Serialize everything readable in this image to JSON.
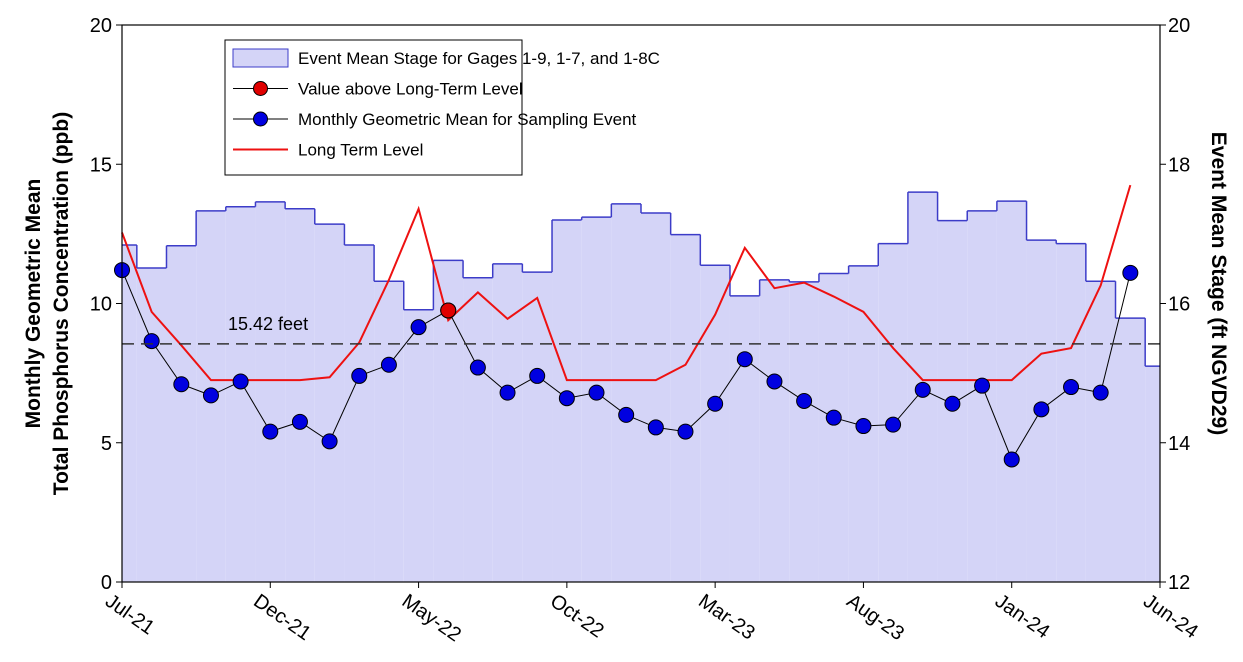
{
  "chart_data": {
    "type": "line",
    "y_label_lines": [
      "Monthly Geometric Mean",
      "Total Phosphorus Concentration (ppb)"
    ],
    "y2_label": "Event Mean Stage (ft NGVD29)",
    "categories": [
      "Jul-21",
      null,
      null,
      null,
      null,
      "Dec-21",
      null,
      null,
      null,
      null,
      "May-22",
      null,
      null,
      null,
      null,
      "Oct-22",
      null,
      null,
      null,
      null,
      "Mar-23",
      null,
      null,
      null,
      null,
      "Aug-23",
      null,
      null,
      null,
      null,
      "Jan-24",
      null,
      null,
      null,
      null,
      "Jun-24"
    ],
    "ylim": [
      0,
      20
    ],
    "yticks": [
      0,
      5,
      10,
      15,
      20
    ],
    "y2lim": [
      12,
      20
    ],
    "y2ticks": [
      12,
      14,
      16,
      18,
      20
    ],
    "grid": false,
    "legend": "upper left",
    "series": [
      {
        "name": "Event Mean Stage for Gages 1-9, 1-7, and 1-8C",
        "axis": "y2",
        "style": "step-area",
        "color": "#d4d4f7",
        "edge_color": "#3c3cc8",
        "values": [
          16.84,
          16.51,
          16.83,
          17.33,
          17.39,
          17.46,
          17.36,
          17.14,
          16.84,
          16.32,
          15.91,
          16.62,
          16.37,
          16.57,
          16.45,
          17.2,
          17.24,
          17.43,
          17.3,
          16.99,
          16.55,
          16.11,
          16.34,
          16.31,
          16.43,
          16.54,
          16.86,
          17.6,
          17.19,
          17.33,
          17.47,
          16.91,
          16.86,
          16.32,
          15.79,
          15.1
        ]
      },
      {
        "name": "Value above Long-Term Level",
        "style": "markers",
        "color": "#e00000",
        "values": [
          null,
          null,
          null,
          null,
          null,
          null,
          null,
          null,
          null,
          null,
          null,
          9.75,
          null,
          null,
          null,
          null,
          null,
          null,
          null,
          null,
          null,
          null,
          null,
          null,
          null,
          null,
          null,
          null,
          null,
          null,
          null,
          null,
          null,
          null,
          null,
          null
        ]
      },
      {
        "name": "Monthly Geometric Mean for Sampling Event",
        "style": "line-markers",
        "color": "#0000e0",
        "values": [
          11.2,
          8.65,
          7.1,
          6.7,
          7.2,
          5.4,
          5.75,
          5.05,
          7.4,
          7.8,
          9.15,
          9.75,
          7.7,
          6.8,
          7.4,
          6.6,
          6.8,
          6.0,
          5.55,
          5.4,
          6.4,
          8.0,
          7.2,
          6.5,
          5.9,
          5.6,
          5.65,
          6.9,
          6.4,
          7.05,
          4.4,
          6.2,
          7.0,
          6.8,
          11.1,
          null
        ]
      },
      {
        "name": "Long Term Level",
        "style": "line",
        "color": "#ee1111",
        "values": [
          12.55,
          9.7,
          8.5,
          7.25,
          7.25,
          7.25,
          7.25,
          7.35,
          8.6,
          10.85,
          13.4,
          9.4,
          10.4,
          9.45,
          10.2,
          7.25,
          7.25,
          7.25,
          7.25,
          7.8,
          9.6,
          12.0,
          10.55,
          10.75,
          10.25,
          9.7,
          8.4,
          7.25,
          7.25,
          7.25,
          7.25,
          8.2,
          8.4,
          10.65,
          14.25,
          null
        ]
      }
    ],
    "reference_line": {
      "axis": "y2",
      "value": 15.42,
      "label": "15.42 feet"
    }
  }
}
